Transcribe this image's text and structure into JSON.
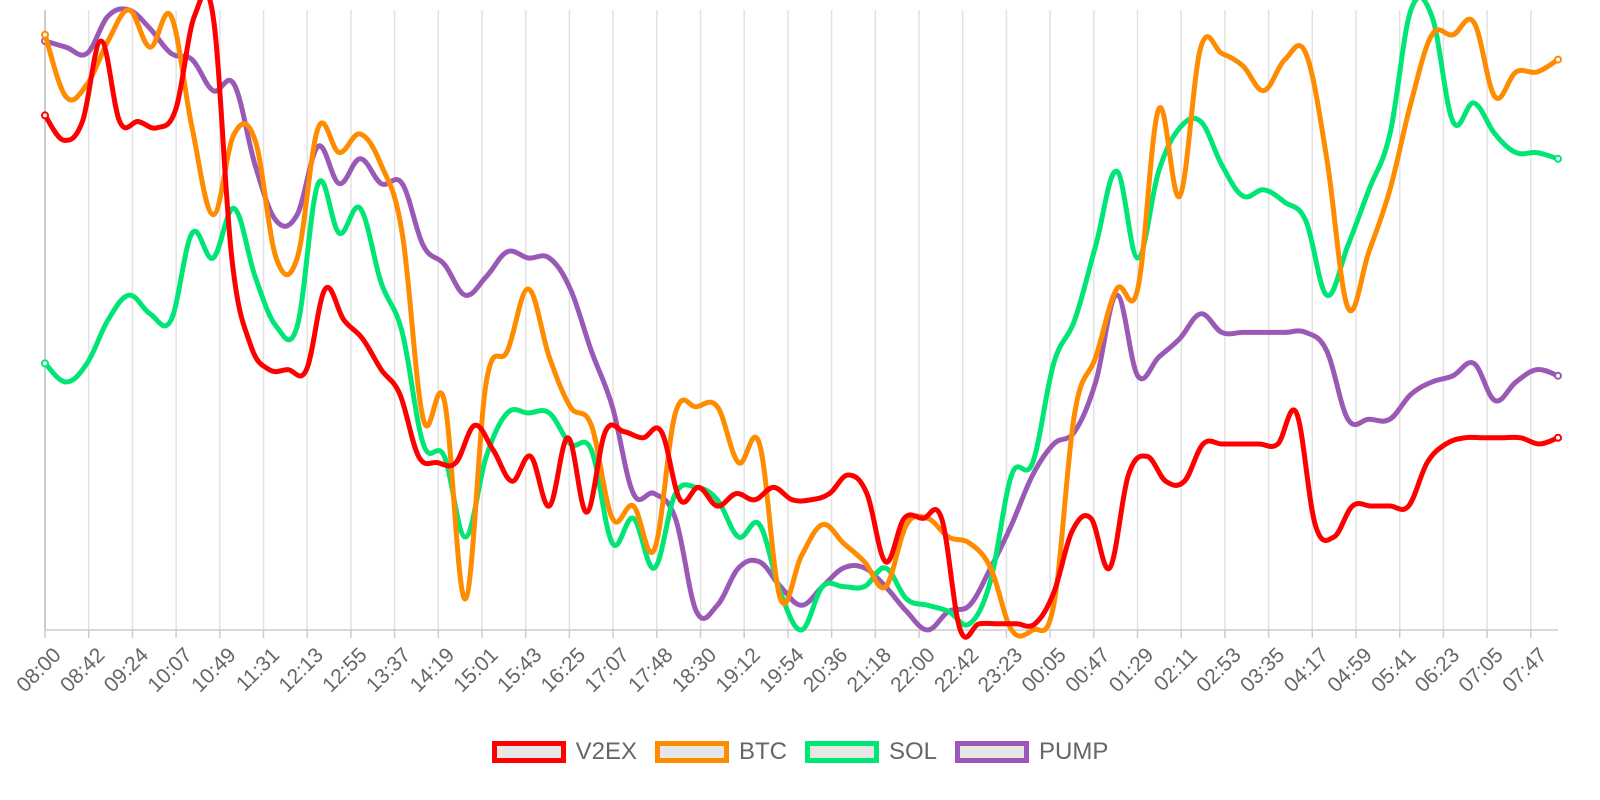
{
  "chart_data": {
    "type": "line",
    "title": "",
    "xlabel": "",
    "ylabel": "",
    "grid": true,
    "legend_position": "bottom",
    "ylim": [
      0,
      100
    ],
    "x_tick_labels": [
      "08:00",
      "08:42",
      "09:24",
      "10:07",
      "10:49",
      "11:31",
      "12:13",
      "12:55",
      "13:37",
      "14:19",
      "15:01",
      "15:43",
      "16:25",
      "17:07",
      "17:48",
      "18:30",
      "19:12",
      "19:54",
      "20:36",
      "21:18",
      "22:00",
      "22:42",
      "23:23",
      "00:05",
      "00:47",
      "01:29",
      "02:11",
      "02:53",
      "03:35",
      "04:17",
      "04:59",
      "05:41",
      "06:23",
      "07:05",
      "07:47"
    ],
    "series": [
      {
        "name": "V2EX",
        "color": "#ff0000",
        "values": [
          83,
          79,
          82,
          95,
          82,
          82,
          81,
          84,
          99,
          99,
          60,
          46,
          42,
          42,
          42,
          55,
          50,
          47,
          42,
          38,
          28,
          27,
          27,
          33,
          29,
          24,
          28,
          20,
          31,
          19,
          32,
          32,
          31,
          32,
          21,
          23,
          20,
          22,
          21,
          23,
          21,
          21,
          22,
          25,
          22,
          11,
          18,
          18,
          18,
          0,
          1,
          1,
          1,
          1,
          6,
          16,
          18,
          10,
          25,
          28,
          24,
          24,
          30,
          30,
          30,
          30,
          30,
          35,
          17,
          15,
          20,
          20,
          20,
          20,
          27,
          30,
          31,
          31,
          31,
          31,
          30,
          31
        ]
      },
      {
        "name": "BTC",
        "color": "#ff8c00",
        "values": [
          96,
          86,
          88,
          95,
          100,
          94,
          99,
          81,
          67,
          80,
          79,
          60,
          60,
          81,
          77,
          80,
          75,
          64,
          34,
          37,
          5,
          40,
          45,
          55,
          44,
          36,
          33,
          18,
          20,
          13,
          35,
          36,
          36,
          27,
          30,
          5,
          12,
          17,
          14,
          11,
          7,
          17,
          18,
          15,
          14,
          10,
          0,
          0,
          4,
          35,
          44,
          55,
          55,
          84,
          70,
          94,
          93,
          91,
          87,
          92,
          93,
          76,
          52,
          61,
          71,
          85,
          96,
          96,
          98,
          86,
          90,
          90,
          92
        ]
      },
      {
        "name": "SOL",
        "color": "#00e676",
        "values": [
          43,
          40,
          43,
          50,
          54,
          51,
          50,
          64,
          60,
          68,
          57,
          49,
          49,
          72,
          64,
          68,
          56,
          48,
          30,
          28,
          15,
          28,
          35,
          35,
          35,
          30,
          29,
          14,
          18,
          10,
          22,
          23,
          21,
          15,
          17,
          6,
          0,
          7,
          7,
          7,
          10,
          5,
          4,
          3,
          1,
          8,
          25,
          27,
          43,
          50,
          62,
          74,
          60,
          74,
          81,
          82,
          75,
          70,
          71,
          69,
          66,
          54,
          62,
          71,
          80,
          100,
          99,
          82,
          85,
          80,
          77,
          77,
          76
        ]
      },
      {
        "name": "PUMP",
        "color": "#9b59b6",
        "values": [
          95,
          94,
          93,
          99,
          100,
          97,
          93,
          92,
          87,
          88,
          75,
          66,
          67,
          78,
          72,
          76,
          72,
          72,
          62,
          59,
          54,
          57,
          61,
          60,
          60,
          55,
          45,
          36,
          22,
          22,
          18,
          3,
          4,
          10,
          11,
          7,
          4,
          7,
          10,
          10,
          7,
          3,
          0,
          3,
          4,
          10,
          17,
          25,
          30,
          32,
          40,
          54,
          41,
          44,
          47,
          51,
          48,
          48,
          48,
          48,
          48,
          45,
          34,
          34,
          34,
          38,
          40,
          41,
          43,
          37,
          40,
          42,
          41
        ]
      }
    ]
  }
}
